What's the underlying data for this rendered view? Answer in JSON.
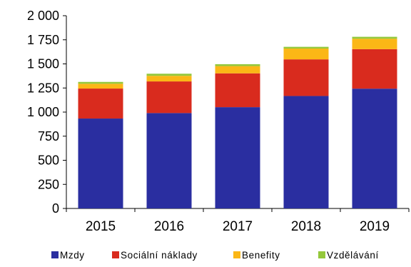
{
  "chart_data": {
    "type": "bar",
    "stacked": true,
    "categories": [
      "2015",
      "2016",
      "2017",
      "2018",
      "2019"
    ],
    "ylim": [
      0,
      2000
    ],
    "yticks": [
      0,
      250,
      500,
      750,
      1000,
      1250,
      1500,
      1750,
      2000
    ],
    "ytick_labels": [
      "0",
      "250",
      "500",
      "750",
      "1 000",
      "1 250",
      "1 500",
      "1 750",
      "2 000"
    ],
    "grid": false,
    "legend_position": "bottom",
    "series": [
      {
        "name": "Mzdy",
        "color": "#2A2EA0",
        "values": [
          933,
          990,
          1051,
          1167,
          1243
        ]
      },
      {
        "name": "Sociální náklady",
        "color": "#D92B1E",
        "values": [
          311,
          328,
          351,
          380,
          410
        ]
      },
      {
        "name": "Benefity",
        "color": "#FBB716",
        "values": [
          50,
          58,
          75,
          112,
          108
        ]
      },
      {
        "name": "Vzdělávání",
        "color": "#94C83B",
        "values": [
          19,
          22,
          20,
          18,
          20
        ]
      }
    ]
  }
}
